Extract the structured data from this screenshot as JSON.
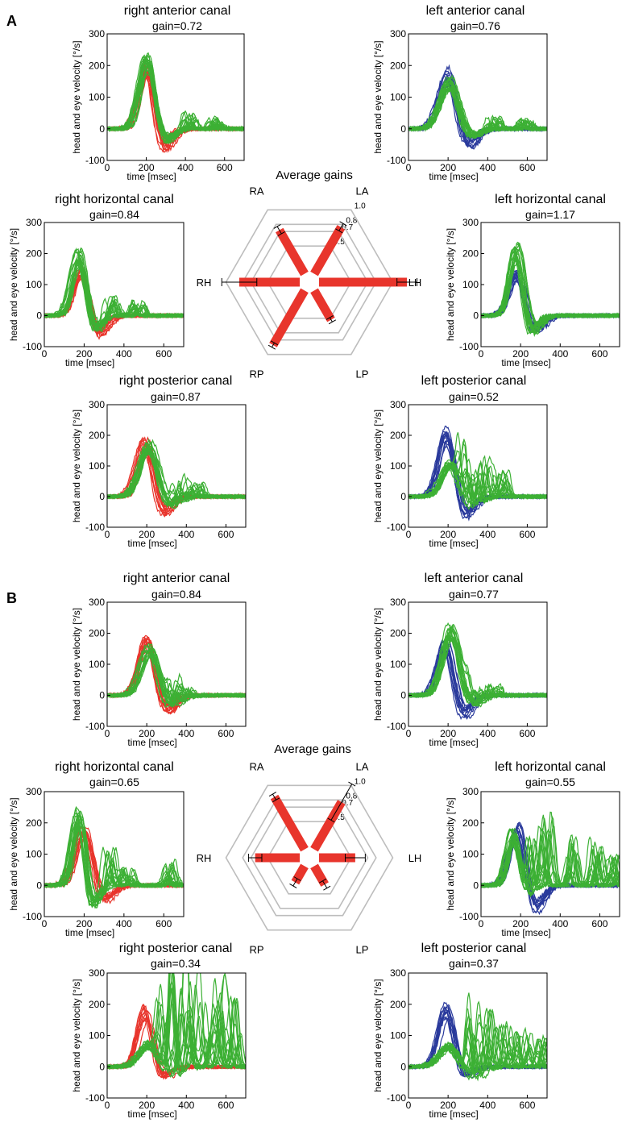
{
  "figure": {
    "panels": [
      {
        "label": "A",
        "average": {
          "title": "Average gains"
        },
        "plots": [
          {
            "title": "right anterior canal",
            "gain": "gain=0.72"
          },
          {
            "title": "left anterior canal",
            "gain": "gain=0.76"
          },
          {
            "title": "right horizontal canal",
            "gain": "gain=0.84"
          },
          {
            "title": "left horizontal canal",
            "gain": "gain=1.17"
          },
          {
            "title": "right posterior canal",
            "gain": "gain=0.87"
          },
          {
            "title": "left posterior canal",
            "gain": "gain=0.52"
          }
        ]
      },
      {
        "label": "B",
        "average": {
          "title": "Average gains"
        },
        "plots": [
          {
            "title": "right anterior canal",
            "gain": "gain=0.84"
          },
          {
            "title": "left anterior canal",
            "gain": "gain=0.77"
          },
          {
            "title": "right horizontal canal",
            "gain": "gain=0.65"
          },
          {
            "title": "left horizontal canal",
            "gain": "gain=0.55"
          },
          {
            "title": "right posterior canal",
            "gain": "gain=0.34"
          },
          {
            "title": "left posterior canal",
            "gain": "gain=0.37"
          }
        ]
      }
    ]
  },
  "colors": {
    "head_right": "#e8352c",
    "head_left": "#2a3a9c",
    "eye": "#3cb034",
    "radar_grid": "#bdbdbd",
    "radar_bar": "#e8352c",
    "axis": "#000000"
  },
  "chart_data": [
    {
      "type": "line",
      "panel": "A",
      "canal": "RA",
      "title": "right anterior canal",
      "subtitle": "gain=0.72",
      "xlabel": "time [msec]",
      "ylabel": "head and eye velocity [°/s]",
      "xlim": [
        0,
        700
      ],
      "ylim": [
        -100,
        300
      ],
      "xticks": [
        0,
        200,
        400,
        600
      ],
      "yticks": [
        -100,
        0,
        100,
        200,
        300
      ],
      "series": [
        {
          "name": "head",
          "color_key": "head_right",
          "peak": 200,
          "peak_time": 200,
          "width": 38,
          "undershoot": 70
        },
        {
          "name": "eye",
          "color_key": "eye",
          "peak": 215,
          "peak_time": 205,
          "width": 40,
          "undershoot": 45,
          "saccades": [
            {
              "t": 420,
              "amp": 50
            },
            {
              "t": 560,
              "amp": 30
            }
          ]
        }
      ]
    },
    {
      "type": "line",
      "panel": "A",
      "canal": "LA",
      "title": "left anterior canal",
      "subtitle": "gain=0.76",
      "xlabel": "time [msec]",
      "ylabel": "head and eye velocity [°/s]",
      "xlim": [
        0,
        700
      ],
      "ylim": [
        -100,
        300
      ],
      "xticks": [
        0,
        200,
        400,
        600
      ],
      "yticks": [
        -100,
        0,
        100,
        200,
        300
      ],
      "series": [
        {
          "name": "head",
          "color_key": "head_left",
          "peak": 180,
          "peak_time": 195,
          "width": 42,
          "undershoot": 60
        },
        {
          "name": "eye",
          "color_key": "eye",
          "peak": 150,
          "peak_time": 210,
          "width": 45,
          "undershoot": 30,
          "saccades": [
            {
              "t": 430,
              "amp": 35
            },
            {
              "t": 590,
              "amp": 25
            }
          ]
        }
      ]
    },
    {
      "type": "line",
      "panel": "A",
      "canal": "RH",
      "title": "right horizontal canal",
      "subtitle": "gain=0.84",
      "xlabel": "time [msec]",
      "ylabel": "head and eye velocity [°/s]",
      "xlim": [
        0,
        700
      ],
      "ylim": [
        -100,
        300
      ],
      "xticks": [
        0,
        200,
        400,
        600
      ],
      "yticks": [
        -100,
        0,
        100,
        200,
        300
      ],
      "series": [
        {
          "name": "head",
          "color_key": "head_right",
          "peak": 150,
          "peak_time": 190,
          "width": 38,
          "undershoot": 70
        },
        {
          "name": "eye",
          "color_key": "eye",
          "peak": 200,
          "peak_time": 175,
          "width": 36,
          "undershoot": 50,
          "saccades": [
            {
              "t": 340,
              "amp": 60
            },
            {
              "t": 470,
              "amp": 40
            }
          ]
        }
      ]
    },
    {
      "type": "line",
      "panel": "A",
      "canal": "LH",
      "title": "left horizontal canal",
      "subtitle": "gain=1.17",
      "xlabel": "time [msec]",
      "ylabel": "head and eye velocity [°/s]",
      "xlim": [
        0,
        700
      ],
      "ylim": [
        -100,
        300
      ],
      "xticks": [
        0,
        200,
        400,
        600
      ],
      "yticks": [
        -100,
        0,
        100,
        200,
        300
      ],
      "series": [
        {
          "name": "head",
          "color_key": "head_left",
          "peak": 140,
          "peak_time": 185,
          "width": 40,
          "undershoot": 55
        },
        {
          "name": "eye",
          "color_key": "eye",
          "peak": 215,
          "peak_time": 180,
          "width": 34,
          "undershoot": 60,
          "saccades": []
        }
      ]
    },
    {
      "type": "line",
      "panel": "A",
      "canal": "RP",
      "title": "right posterior canal",
      "subtitle": "gain=0.87",
      "xlabel": "time [msec]",
      "ylabel": "head and eye velocity [°/s]",
      "xlim": [
        0,
        700
      ],
      "ylim": [
        -100,
        300
      ],
      "xticks": [
        0,
        200,
        400,
        600
      ],
      "yticks": [
        -100,
        0,
        100,
        200,
        300
      ],
      "series": [
        {
          "name": "head",
          "color_key": "head_right",
          "peak": 175,
          "peak_time": 195,
          "width": 40,
          "undershoot": 60
        },
        {
          "name": "eye",
          "color_key": "eye",
          "peak": 165,
          "peak_time": 215,
          "width": 45,
          "undershoot": 40,
          "saccades": [
            {
              "t": 360,
              "amp": 70
            },
            {
              "t": 450,
              "amp": 40
            }
          ]
        }
      ]
    },
    {
      "type": "line",
      "panel": "A",
      "canal": "LP",
      "title": "left posterior canal",
      "subtitle": "gain=0.52",
      "xlabel": "time [msec]",
      "ylabel": "head and eye velocity [°/s]",
      "xlim": [
        0,
        700
      ],
      "ylim": [
        -100,
        300
      ],
      "xticks": [
        0,
        200,
        400,
        600
      ],
      "yticks": [
        -100,
        0,
        100,
        200,
        300
      ],
      "series": [
        {
          "name": "head",
          "color_key": "head_left",
          "peak": 210,
          "peak_time": 195,
          "width": 42,
          "undershoot": 75
        },
        {
          "name": "eye",
          "color_key": "eye",
          "peak": 110,
          "peak_time": 210,
          "width": 45,
          "undershoot": 40,
          "saccades": [
            {
              "t": 290,
              "amp": 150
            },
            {
              "t": 380,
              "amp": 120
            },
            {
              "t": 470,
              "amp": 90
            }
          ]
        }
      ]
    },
    {
      "type": "line",
      "panel": "B",
      "canal": "RA",
      "title": "right anterior canal",
      "subtitle": "gain=0.84",
      "xlabel": "time [msec]",
      "ylabel": "head and eye velocity [°/s]",
      "xlim": [
        0,
        700
      ],
      "ylim": [
        -100,
        300
      ],
      "xticks": [
        0,
        200,
        400,
        600
      ],
      "yticks": [
        -100,
        0,
        100,
        200,
        300
      ],
      "series": [
        {
          "name": "head",
          "color_key": "head_right",
          "peak": 180,
          "peak_time": 200,
          "width": 42,
          "undershoot": 60
        },
        {
          "name": "eye",
          "color_key": "eye",
          "peak": 150,
          "peak_time": 215,
          "width": 45,
          "undershoot": 45,
          "saccades": [
            {
              "t": 330,
              "amp": 60
            },
            {
              "t": 400,
              "amp": 30
            }
          ]
        }
      ]
    },
    {
      "type": "line",
      "panel": "B",
      "canal": "LA",
      "title": "left anterior canal",
      "subtitle": "gain=0.77",
      "xlabel": "time [msec]",
      "ylabel": "head and eye velocity [°/s]",
      "xlim": [
        0,
        700
      ],
      "ylim": [
        -100,
        300
      ],
      "xticks": [
        0,
        200,
        400,
        600
      ],
      "yticks": [
        -100,
        0,
        100,
        200,
        300
      ],
      "series": [
        {
          "name": "head",
          "color_key": "head_left",
          "peak": 170,
          "peak_time": 190,
          "width": 40,
          "undershoot": 70
        },
        {
          "name": "eye",
          "color_key": "eye",
          "peak": 210,
          "peak_time": 215,
          "width": 42,
          "undershoot": 40,
          "saccades": [
            {
              "t": 330,
              "amp": 50
            },
            {
              "t": 430,
              "amp": 30
            }
          ]
        }
      ]
    },
    {
      "type": "line",
      "panel": "B",
      "canal": "RH",
      "title": "right horizontal canal",
      "subtitle": "gain=0.65",
      "xlabel": "time [msec]",
      "ylabel": "head and eye velocity [°/s]",
      "xlim": [
        0,
        700
      ],
      "ylim": [
        -100,
        300
      ],
      "xticks": [
        0,
        200,
        400,
        600
      ],
      "yticks": [
        -100,
        0,
        100,
        200,
        300
      ],
      "series": [
        {
          "name": "head",
          "color_key": "head_right",
          "peak": 190,
          "peak_time": 200,
          "width": 45,
          "undershoot": 55
        },
        {
          "name": "eye",
          "color_key": "eye",
          "peak": 230,
          "peak_time": 175,
          "width": 32,
          "undershoot": 80,
          "saccades": [
            {
              "t": 320,
              "amp": 110
            },
            {
              "t": 420,
              "amp": 50
            },
            {
              "t": 640,
              "amp": 70
            }
          ]
        }
      ]
    },
    {
      "type": "line",
      "panel": "B",
      "canal": "LH",
      "title": "left horizontal canal",
      "subtitle": "gain=0.55",
      "xlabel": "time [msec]",
      "ylabel": "head and eye velocity [°/s]",
      "xlim": [
        0,
        700
      ],
      "ylim": [
        -100,
        300
      ],
      "xticks": [
        0,
        200,
        400,
        600
      ],
      "yticks": [
        -100,
        0,
        100,
        200,
        300
      ],
      "series": [
        {
          "name": "head",
          "color_key": "head_left",
          "peak": 185,
          "peak_time": 185,
          "width": 40,
          "undershoot": 85
        },
        {
          "name": "eye",
          "color_key": "eye",
          "peak": 170,
          "peak_time": 165,
          "width": 32,
          "undershoot": 40,
          "saccades": [
            {
              "t": 260,
              "amp": 160
            },
            {
              "t": 330,
              "amp": 200
            },
            {
              "t": 470,
              "amp": 140
            },
            {
              "t": 580,
              "amp": 130
            },
            {
              "t": 680,
              "amp": 90
            }
          ]
        }
      ]
    },
    {
      "type": "line",
      "panel": "B",
      "canal": "RP",
      "title": "right posterior canal",
      "subtitle": "gain=0.34",
      "xlabel": "time [msec]",
      "ylabel": "head and eye velocity [°/s]",
      "xlim": [
        0,
        700
      ],
      "ylim": [
        -100,
        300
      ],
      "xticks": [
        0,
        200,
        400,
        600
      ],
      "yticks": [
        -100,
        0,
        100,
        200,
        300
      ],
      "series": [
        {
          "name": "head",
          "color_key": "head_right",
          "peak": 180,
          "peak_time": 195,
          "width": 40,
          "undershoot": 40
        },
        {
          "name": "eye",
          "color_key": "eye",
          "peak": 75,
          "peak_time": 210,
          "width": 50,
          "undershoot": 30,
          "saccades": [
            {
              "t": 290,
              "amp": 220
            },
            {
              "t": 360,
              "amp": 240
            },
            {
              "t": 430,
              "amp": 230
            },
            {
              "t": 500,
              "amp": 210
            },
            {
              "t": 570,
              "amp": 230
            },
            {
              "t": 640,
              "amp": 200
            }
          ]
        }
      ]
    },
    {
      "type": "line",
      "panel": "B",
      "canal": "LP",
      "title": "left posterior canal",
      "subtitle": "gain=0.37",
      "xlabel": "time [msec]",
      "ylabel": "head and eye velocity [°/s]",
      "xlim": [
        0,
        700
      ],
      "ylim": [
        -100,
        300
      ],
      "xticks": [
        0,
        200,
        400,
        600
      ],
      "yticks": [
        -100,
        0,
        100,
        200,
        300
      ],
      "series": [
        {
          "name": "head",
          "color_key": "head_left",
          "peak": 185,
          "peak_time": 195,
          "width": 42,
          "undershoot": 40
        },
        {
          "name": "eye",
          "color_key": "eye",
          "peak": 70,
          "peak_time": 210,
          "width": 50,
          "undershoot": 40,
          "saccades": [
            {
              "t": 330,
              "amp": 220
            },
            {
              "t": 400,
              "amp": 180
            },
            {
              "t": 480,
              "amp": 120
            },
            {
              "t": 580,
              "amp": 100
            },
            {
              "t": 680,
              "amp": 80
            }
          ]
        }
      ]
    },
    {
      "type": "radar",
      "panel": "A",
      "title": "Average gains",
      "axes": [
        "LH",
        "LA",
        "RA",
        "RH",
        "RP",
        "LP"
      ],
      "rings": [
        0.5,
        0.7,
        0.8,
        1.0
      ],
      "ring_labels": [
        "0.5",
        "0.7",
        "0.8",
        "1.0"
      ],
      "rmax": 1.13,
      "values": [
        1.17,
        0.76,
        0.72,
        0.84,
        0.87,
        0.52
      ],
      "errors": [
        0.12,
        0.05,
        0.05,
        0.21,
        0.03,
        0.03
      ]
    },
    {
      "type": "radar",
      "panel": "B",
      "title": "Average gains",
      "axes": [
        "LH",
        "LA",
        "RA",
        "RH",
        "RP",
        "LP"
      ],
      "rings": [
        0.5,
        0.7,
        0.8,
        1.0
      ],
      "ring_labels": [
        "0.5",
        "0.7",
        "0.8",
        "1.0"
      ],
      "rmax": 1.13,
      "values": [
        0.55,
        0.77,
        0.84,
        0.65,
        0.34,
        0.37
      ],
      "errors": [
        0.12,
        0.25,
        0.04,
        0.08,
        0.05,
        0.05
      ]
    }
  ]
}
